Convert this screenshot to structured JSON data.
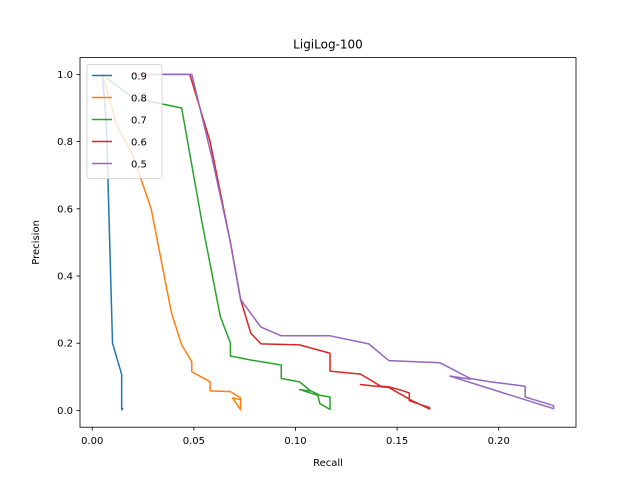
{
  "chart_data": {
    "type": "line",
    "title": "LigiLog-100",
    "xlabel": "Recall",
    "ylabel": "Precision",
    "xlim": [
      -0.006,
      0.238
    ],
    "ylim": [
      -0.05,
      1.05
    ],
    "xticks": [
      0.0,
      0.05,
      0.1,
      0.15,
      0.2
    ],
    "xtick_labels": [
      "0.00",
      "0.05",
      "0.10",
      "0.15",
      "0.20"
    ],
    "yticks": [
      0.0,
      0.2,
      0.4,
      0.6,
      0.8,
      1.0
    ],
    "ytick_labels": [
      "0.0",
      "0.2",
      "0.4",
      "0.6",
      "0.8",
      "1.0"
    ],
    "grid": false,
    "legend_position": "top-left",
    "series": [
      {
        "name": "0.9",
        "color": "#1f77b4",
        "x": [
          0.005,
          0.007,
          0.01,
          0.0145,
          0.0145,
          0.015
        ],
        "y": [
          1.0,
          0.85,
          0.2,
          0.107,
          0.002,
          0.005
        ]
      },
      {
        "name": "0.8",
        "color": "#ff7f0e",
        "x": [
          0.005,
          0.012,
          0.02,
          0.029,
          0.039,
          0.044,
          0.049,
          0.049,
          0.058,
          0.058,
          0.068,
          0.073,
          0.073,
          0.069,
          0.073
        ],
        "y": [
          1.0,
          0.85,
          0.76,
          0.6,
          0.29,
          0.195,
          0.145,
          0.115,
          0.085,
          0.058,
          0.056,
          0.037,
          0.002,
          0.037,
          0.032
        ]
      },
      {
        "name": "0.7",
        "color": "#2ca02c",
        "x": [
          0.007,
          0.02,
          0.044,
          0.054,
          0.063,
          0.068,
          0.068,
          0.078,
          0.093,
          0.093,
          0.102,
          0.107,
          0.112,
          0.117,
          0.117,
          0.112,
          0.111,
          0.102,
          0.107
        ],
        "y": [
          0.99,
          0.93,
          0.9,
          0.56,
          0.28,
          0.2,
          0.162,
          0.15,
          0.135,
          0.095,
          0.085,
          0.06,
          0.045,
          0.04,
          0.003,
          0.02,
          0.045,
          0.062,
          0.058
        ]
      },
      {
        "name": "0.6",
        "color": "#d62728",
        "x": [
          0.02,
          0.048,
          0.058,
          0.068,
          0.073,
          0.078,
          0.083,
          0.102,
          0.117,
          0.117,
          0.132,
          0.142,
          0.146,
          0.151,
          0.156,
          0.156,
          0.166,
          0.166,
          0.157,
          0.146,
          0.132
        ],
        "y": [
          1.0,
          1.0,
          0.8,
          0.5,
          0.33,
          0.23,
          0.198,
          0.195,
          0.17,
          0.117,
          0.108,
          0.072,
          0.07,
          0.062,
          0.052,
          0.029,
          0.008,
          0.004,
          0.03,
          0.068,
          0.077
        ]
      },
      {
        "name": "0.5",
        "color": "#9467bd",
        "x": [
          0.026,
          0.049,
          0.059,
          0.068,
          0.073,
          0.083,
          0.093,
          0.117,
          0.136,
          0.146,
          0.171,
          0.186,
          0.196,
          0.213,
          0.213,
          0.227,
          0.227,
          0.176,
          0.186
        ],
        "y": [
          1.0,
          1.0,
          0.75,
          0.5,
          0.33,
          0.248,
          0.222,
          0.222,
          0.198,
          0.148,
          0.142,
          0.095,
          0.085,
          0.072,
          0.04,
          0.014,
          0.005,
          0.102,
          0.093
        ]
      }
    ]
  }
}
